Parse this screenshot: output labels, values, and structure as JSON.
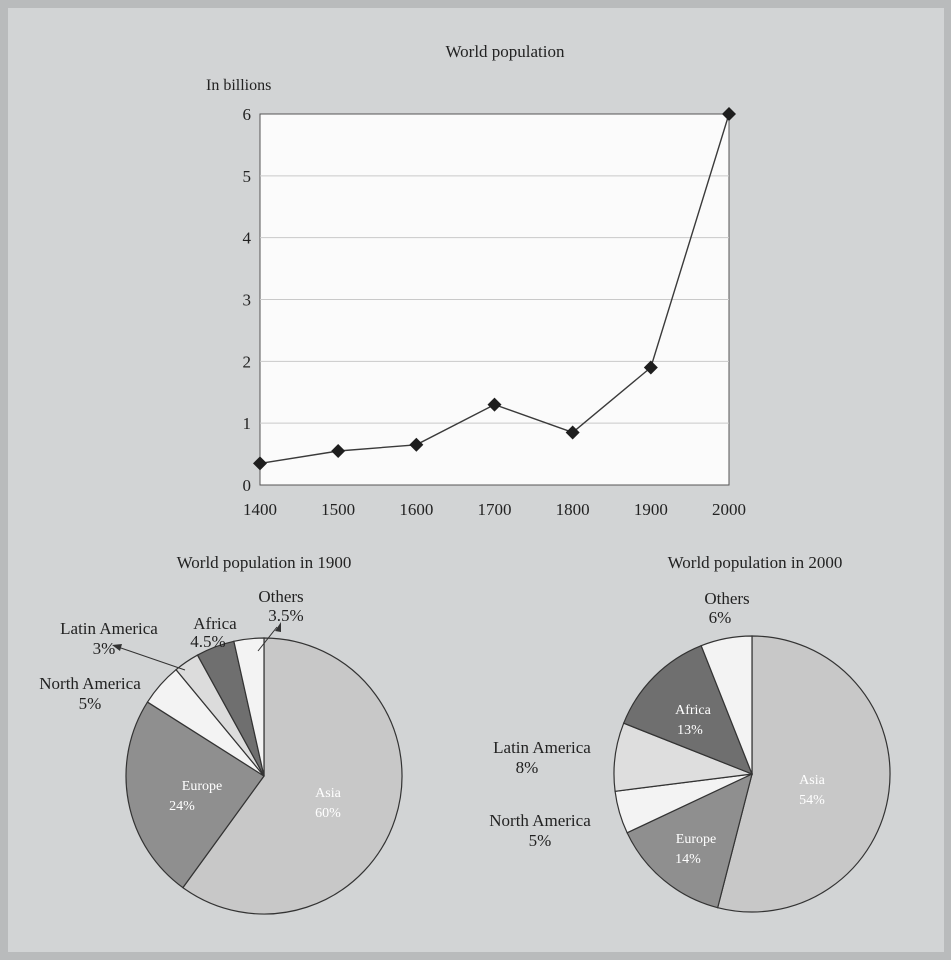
{
  "chart_data": [
    {
      "type": "line",
      "title": "World population",
      "ylabel": "In billions",
      "xlabel": "",
      "x": [
        1400,
        1500,
        1600,
        1700,
        1800,
        1900,
        2000
      ],
      "series": [
        {
          "values": [
            0.35,
            0.55,
            0.65,
            1.3,
            0.85,
            1.9,
            6.0
          ]
        }
      ],
      "ylim": [
        0,
        6
      ],
      "yticks": [
        "0",
        "1",
        "2",
        "3",
        "4",
        "5",
        "6"
      ],
      "xticks": [
        "1400",
        "1500",
        "1600",
        "1700",
        "1800",
        "1900",
        "2000"
      ],
      "grid": true,
      "colors": {
        "line": "#3a3a3a",
        "marker": "#1e1e1e",
        "plot_bg": "#fbfbfb",
        "grid": "#c9c9c9"
      }
    },
    {
      "type": "pie",
      "title": "World population in 1900",
      "slices": [
        {
          "label": "Asia",
          "value": 60,
          "value_text": "60%",
          "color": "#c8c8c8"
        },
        {
          "label": "Europe",
          "value": 24,
          "value_text": "24%",
          "color": "#8f8f8f"
        },
        {
          "label": "North America",
          "value": 5,
          "value_text": "5%",
          "color": "#f3f3f3"
        },
        {
          "label": "Latin America",
          "value": 3,
          "value_text": "3%",
          "color": "#dcdcdc"
        },
        {
          "label": "Africa",
          "value": 4.5,
          "value_text": "4.5%",
          "color": "#6f6f6f"
        },
        {
          "label": "Others",
          "value": 3.5,
          "value_text": "3.5%",
          "color": "#f3f3f3"
        }
      ]
    },
    {
      "type": "pie",
      "title": "World population in 2000",
      "slices": [
        {
          "label": "Asia",
          "value": 54,
          "value_text": "54%",
          "color": "#c8c8c8"
        },
        {
          "label": "Europe",
          "value": 14,
          "value_text": "14%",
          "color": "#8f8f8f"
        },
        {
          "label": "North America",
          "value": 5,
          "value_text": "5%",
          "color": "#f3f3f3"
        },
        {
          "label": "Latin America",
          "value": 8,
          "value_text": "8%",
          "color": "#dedede"
        },
        {
          "label": "Africa",
          "value": 13,
          "value_text": "13%",
          "color": "#6f6f6f"
        },
        {
          "label": "Others",
          "value": 6,
          "value_text": "6%",
          "color": "#f3f3f3"
        }
      ]
    }
  ],
  "theme": {
    "page_bg": "#b9bbbc",
    "panel_bg": "#d2d4d5",
    "text": "#222222",
    "slice_stroke": "#333333"
  }
}
